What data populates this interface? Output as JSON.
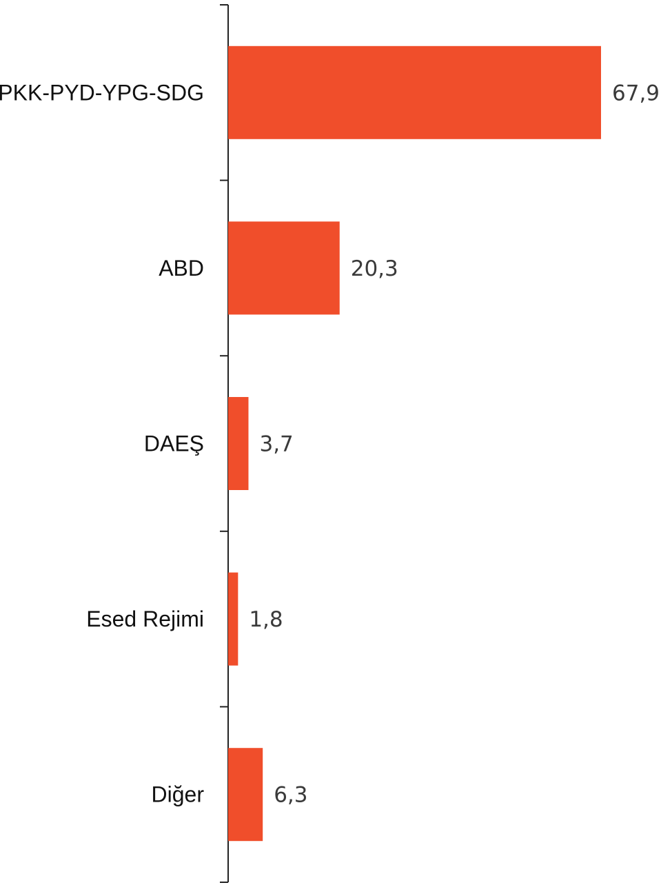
{
  "chart_data": {
    "type": "bar",
    "orientation": "horizontal",
    "categories": [
      "PKK-PYD-YPG-SDG",
      "ABD",
      "DAEŞ",
      "Esed Rejimi",
      "Diğer"
    ],
    "values": [
      67.9,
      20.3,
      3.7,
      1.8,
      6.3
    ],
    "value_labels": [
      "67,9",
      "20,3",
      "3,7",
      "1,8",
      "6,3"
    ],
    "bar_color": "#F04E2B",
    "axis_color": "#222222",
    "grid": false,
    "legend": "none"
  }
}
